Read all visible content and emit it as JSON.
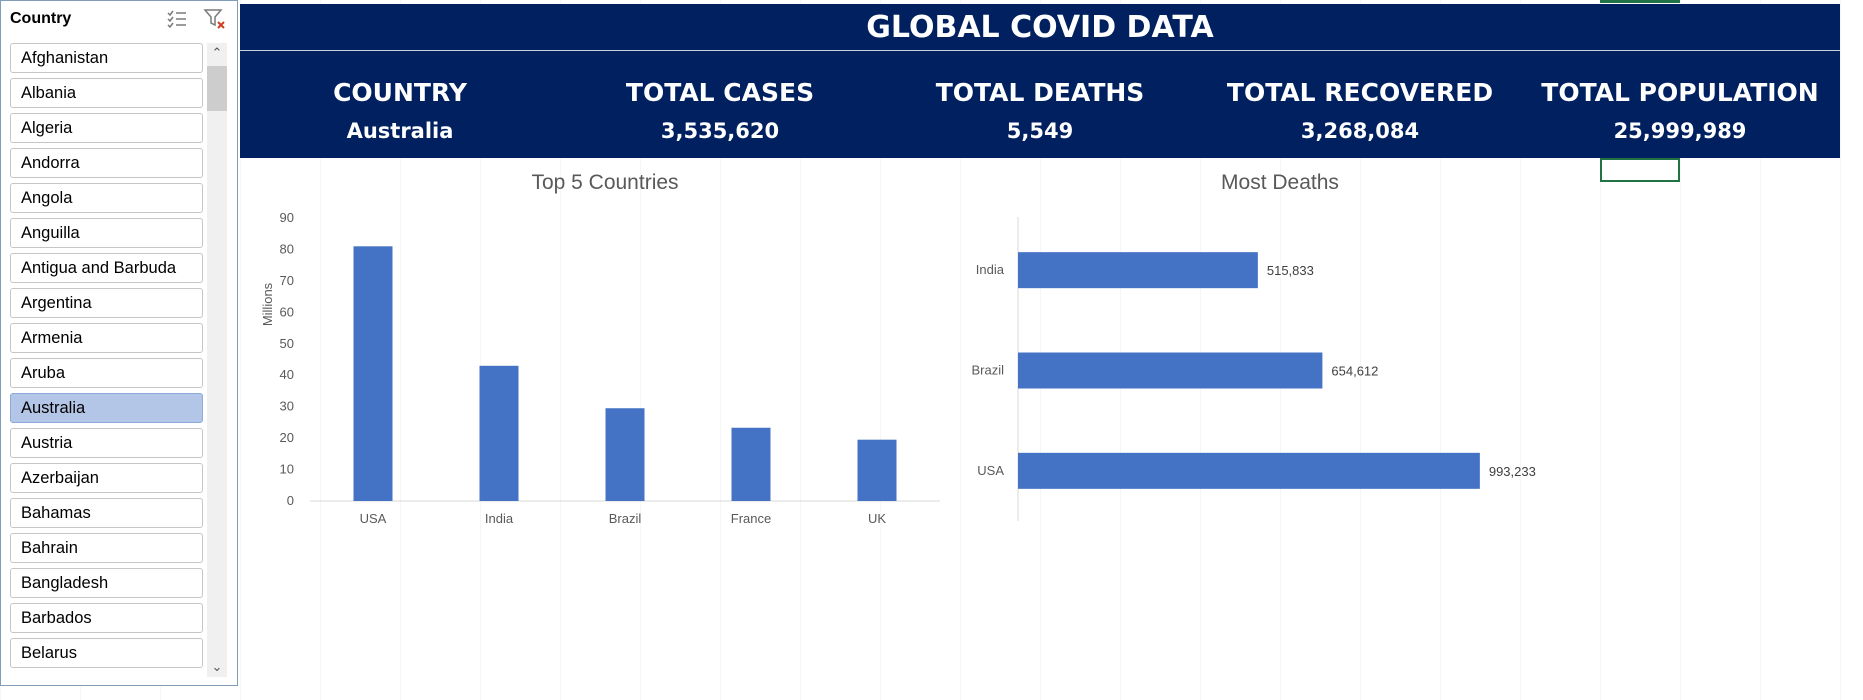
{
  "slicer": {
    "title": "Country",
    "items": [
      "Afghanistan",
      "Albania",
      "Algeria",
      "Andorra",
      "Angola",
      "Anguilla",
      "Antigua and Barbuda",
      "Argentina",
      "Armenia",
      "Aruba",
      "Australia",
      "Austria",
      "Azerbaijan",
      "Bahamas",
      "Bahrain",
      "Bangladesh",
      "Barbados",
      "Belarus"
    ],
    "selected": "Australia"
  },
  "header": {
    "title": "GLOBAL COVID DATA",
    "kpis": [
      {
        "label": "COUNTRY",
        "value": "Australia"
      },
      {
        "label": "TOTAL CASES",
        "value": "3,535,620"
      },
      {
        "label": "TOTAL DEATHS",
        "value": "5,549"
      },
      {
        "label": "TOTAL RECOVERED",
        "value": "3,268,084"
      },
      {
        "label": "TOTAL POPULATION",
        "value": "25,999,989"
      }
    ]
  },
  "colors": {
    "banner": "#002060",
    "bar": "#4472c4",
    "selected": "#b4c6e7"
  },
  "chart_data": [
    {
      "type": "bar",
      "title": "Top 5 Countries",
      "categories": [
        "USA",
        "India",
        "Brazil",
        "France",
        "UK"
      ],
      "values": [
        81,
        43,
        29.5,
        23.3,
        19.5
      ],
      "ylabel": "Millions",
      "ylim": [
        0,
        90
      ],
      "yticks": [
        0,
        10,
        20,
        30,
        40,
        50,
        60,
        70,
        80,
        90
      ],
      "grid": false
    },
    {
      "type": "bar",
      "orientation": "horizontal",
      "title": "Most Deaths",
      "categories": [
        "India",
        "Brazil",
        "USA"
      ],
      "values": [
        515833,
        654612,
        993233
      ],
      "labels": [
        "515,833",
        "654,612",
        "993,233"
      ],
      "grid": false
    }
  ]
}
